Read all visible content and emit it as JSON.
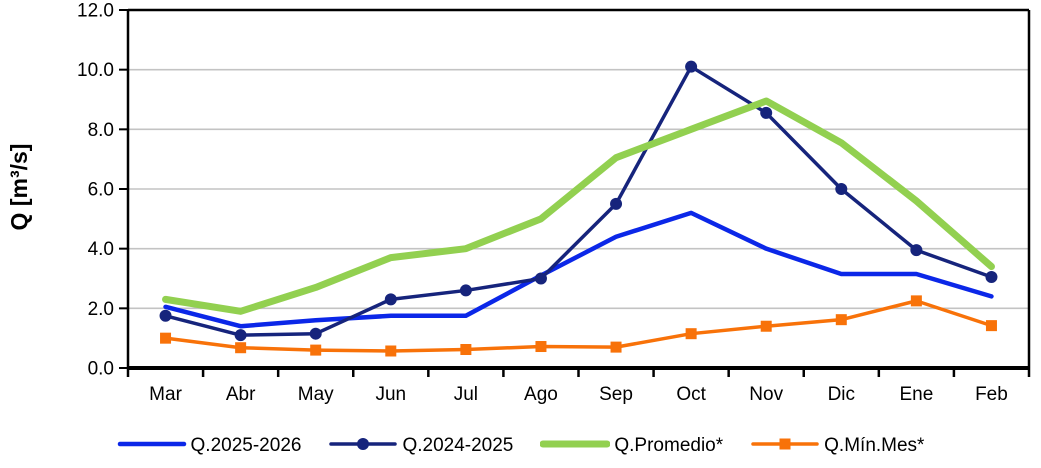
{
  "chart_data": {
    "type": "line",
    "title": "",
    "ylabel": "Q [m³/s]",
    "xlabel": "",
    "ylim": [
      0,
      12
    ],
    "ytick_step": 2,
    "ytick_labels": [
      "0.0",
      "2.0",
      "4.0",
      "6.0",
      "8.0",
      "10.0",
      "12.0"
    ],
    "grid": true,
    "legend_position": "bottom",
    "categories": [
      "Mar",
      "Abr",
      "May",
      "Jun",
      "Jul",
      "Ago",
      "Sep",
      "Oct",
      "Nov",
      "Dic",
      "Ene",
      "Feb"
    ],
    "series": [
      {
        "name": "Q.2025-2026",
        "color": "#0B27E8",
        "marker": "none",
        "line_width": 4.5,
        "values": [
          2.05,
          1.4,
          1.6,
          1.75,
          1.75,
          3.1,
          4.4,
          5.2,
          4.0,
          3.15,
          3.15,
          2.4
        ]
      },
      {
        "name": "Q.2024-2025",
        "color": "#16247C",
        "marker": "circle",
        "line_width": 3.5,
        "values": [
          1.75,
          1.1,
          1.15,
          2.3,
          2.6,
          3.0,
          5.5,
          10.1,
          8.55,
          6.0,
          3.95,
          3.05
        ]
      },
      {
        "name": "Q.Promedio*",
        "color": "#92D050",
        "marker": "none",
        "line_width": 7,
        "values": [
          2.3,
          1.9,
          2.7,
          3.7,
          4.0,
          5.0,
          7.05,
          8.0,
          8.95,
          7.55,
          5.6,
          3.4
        ]
      },
      {
        "name": "Q.Mín.Mes*",
        "color": "#F87209",
        "marker": "square",
        "line_width": 3.5,
        "values": [
          1.0,
          0.68,
          0.6,
          0.57,
          0.62,
          0.72,
          0.7,
          1.15,
          1.4,
          1.62,
          2.25,
          1.42
        ]
      }
    ]
  }
}
